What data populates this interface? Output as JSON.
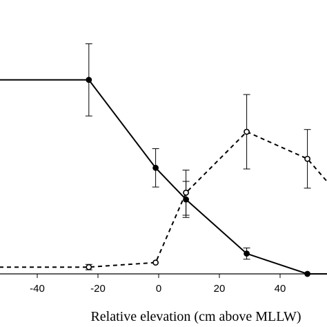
{
  "chart_data": {
    "type": "line",
    "title": "",
    "xlabel": "Relative elevation (cm above MLLW)",
    "ylabel": "",
    "xlim": [
      -70,
      58
    ],
    "ylim": [
      0,
      1.0
    ],
    "x_ticks": [
      -40,
      -20,
      0,
      20,
      40
    ],
    "x_tick_labels": [
      "-40",
      "-20",
      "0",
      "20",
      "40"
    ],
    "grid": false,
    "series": [
      {
        "style": "solid",
        "marker": "filled-circle",
        "color": "#000000",
        "points": [
          {
            "x": -70,
            "y": 0.86
          },
          {
            "x": -23,
            "y": 0.86,
            "err": 0.16
          },
          {
            "x": -1,
            "y": 0.47,
            "err": 0.085
          },
          {
            "x": 9,
            "y": 0.33,
            "err": 0.08
          },
          {
            "x": 29,
            "y": 0.09,
            "err": 0.025
          },
          {
            "x": 49,
            "y": 0.0
          },
          {
            "x": 58,
            "y": 0.0
          }
        ]
      },
      {
        "style": "dashed",
        "marker": "open-circle",
        "color": "#000000",
        "points": [
          {
            "x": -70,
            "y": 0.03
          },
          {
            "x": -23,
            "y": 0.03,
            "err": 0.012
          },
          {
            "x": -1,
            "y": 0.05
          },
          {
            "x": 9,
            "y": 0.36,
            "err": 0.1
          },
          {
            "x": 29,
            "y": 0.63,
            "err": 0.165
          },
          {
            "x": 49,
            "y": 0.51,
            "err": 0.13
          },
          {
            "x": 58,
            "y": 0.37
          }
        ]
      }
    ]
  }
}
